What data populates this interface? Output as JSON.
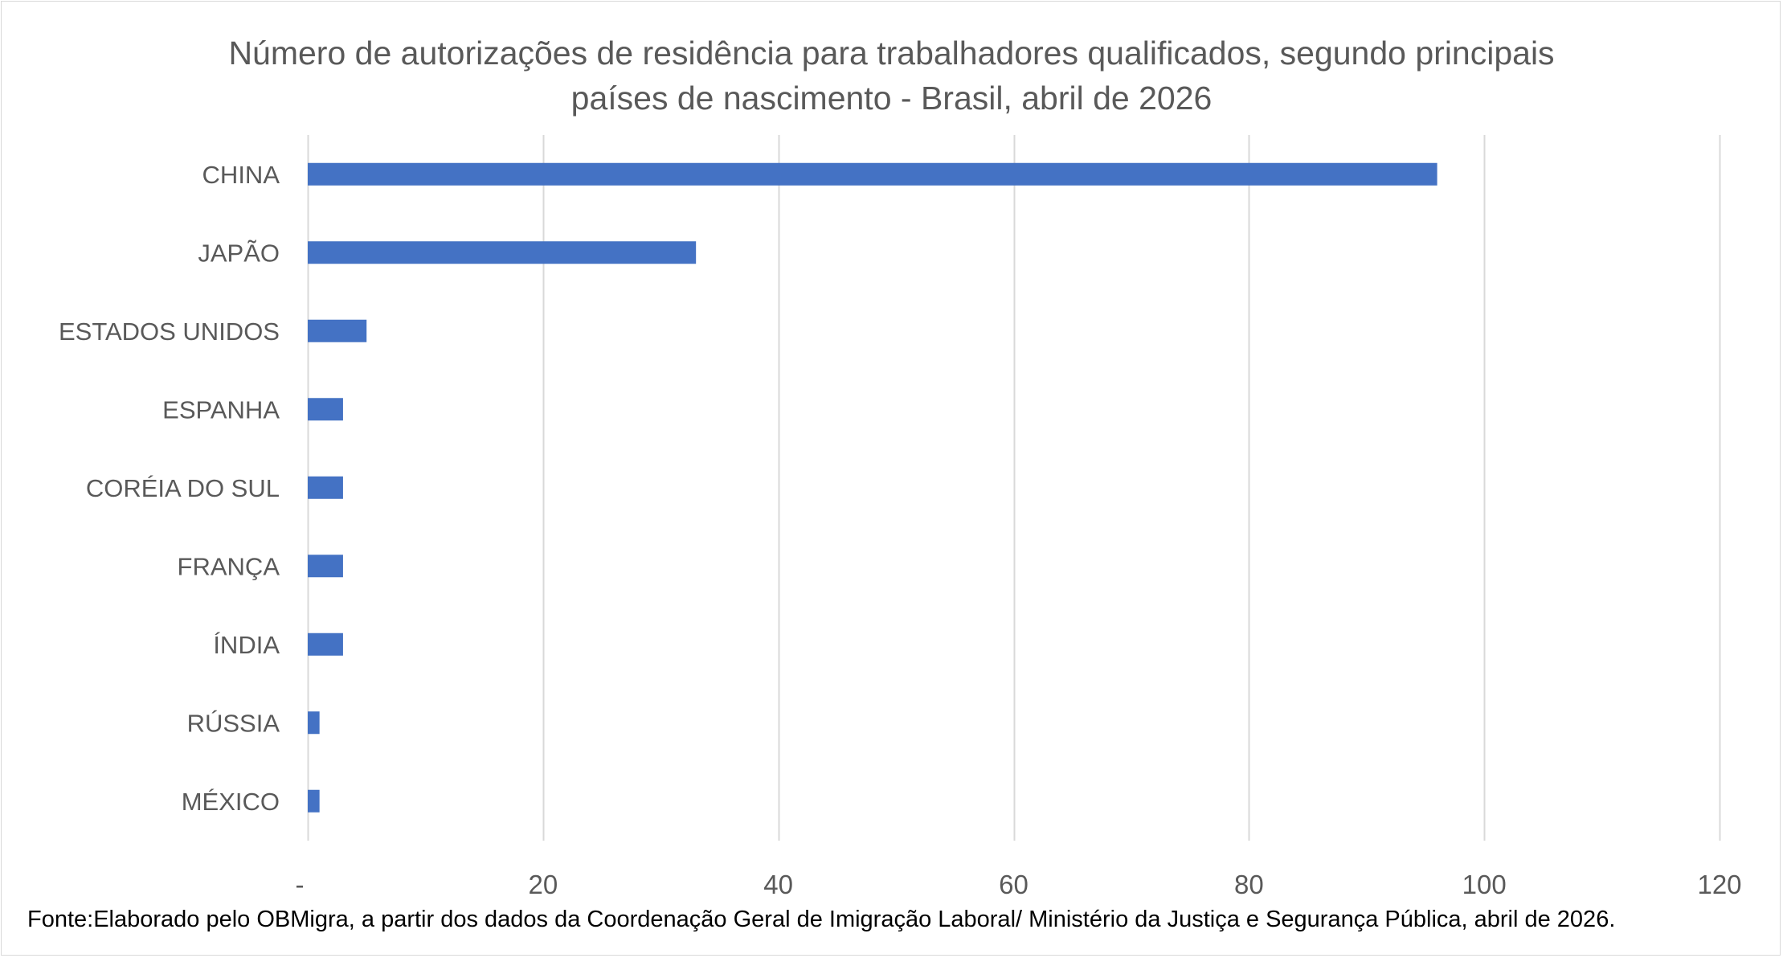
{
  "chart_data": {
    "type": "bar",
    "orientation": "horizontal",
    "title_lines": [
      "Número de autorizações de residência para trabalhadores qualificados, segundo principais",
      "países de nascimento - Brasil, abril de 2026"
    ],
    "categories": [
      "CHINA",
      "JAPÃO",
      "ESTADOS UNIDOS",
      "ESPANHA",
      "CORÉIA DO SUL",
      "FRANÇA",
      "ÍNDIA",
      "RÚSSIA",
      "MÉXICO"
    ],
    "values": [
      96,
      33,
      5,
      3,
      3,
      3,
      3,
      1,
      1
    ],
    "xlim": [
      0,
      120
    ],
    "x_ticks": [
      0,
      20,
      40,
      60,
      80,
      100,
      120
    ],
    "x_tick_labels": [
      "-",
      "20",
      "40",
      "60",
      "80",
      "100",
      "120"
    ],
    "grid": true,
    "legend": "none",
    "bar_color": "#4472c4",
    "grid_color": "#d9d9d9"
  },
  "footer": {
    "source": "Fonte:Elaborado pelo OBMigra, a partir dos dados da Coordenação Geral de Imigração Laboral/ Ministério da Justiça e Segurança Pública, abril de 2026."
  }
}
